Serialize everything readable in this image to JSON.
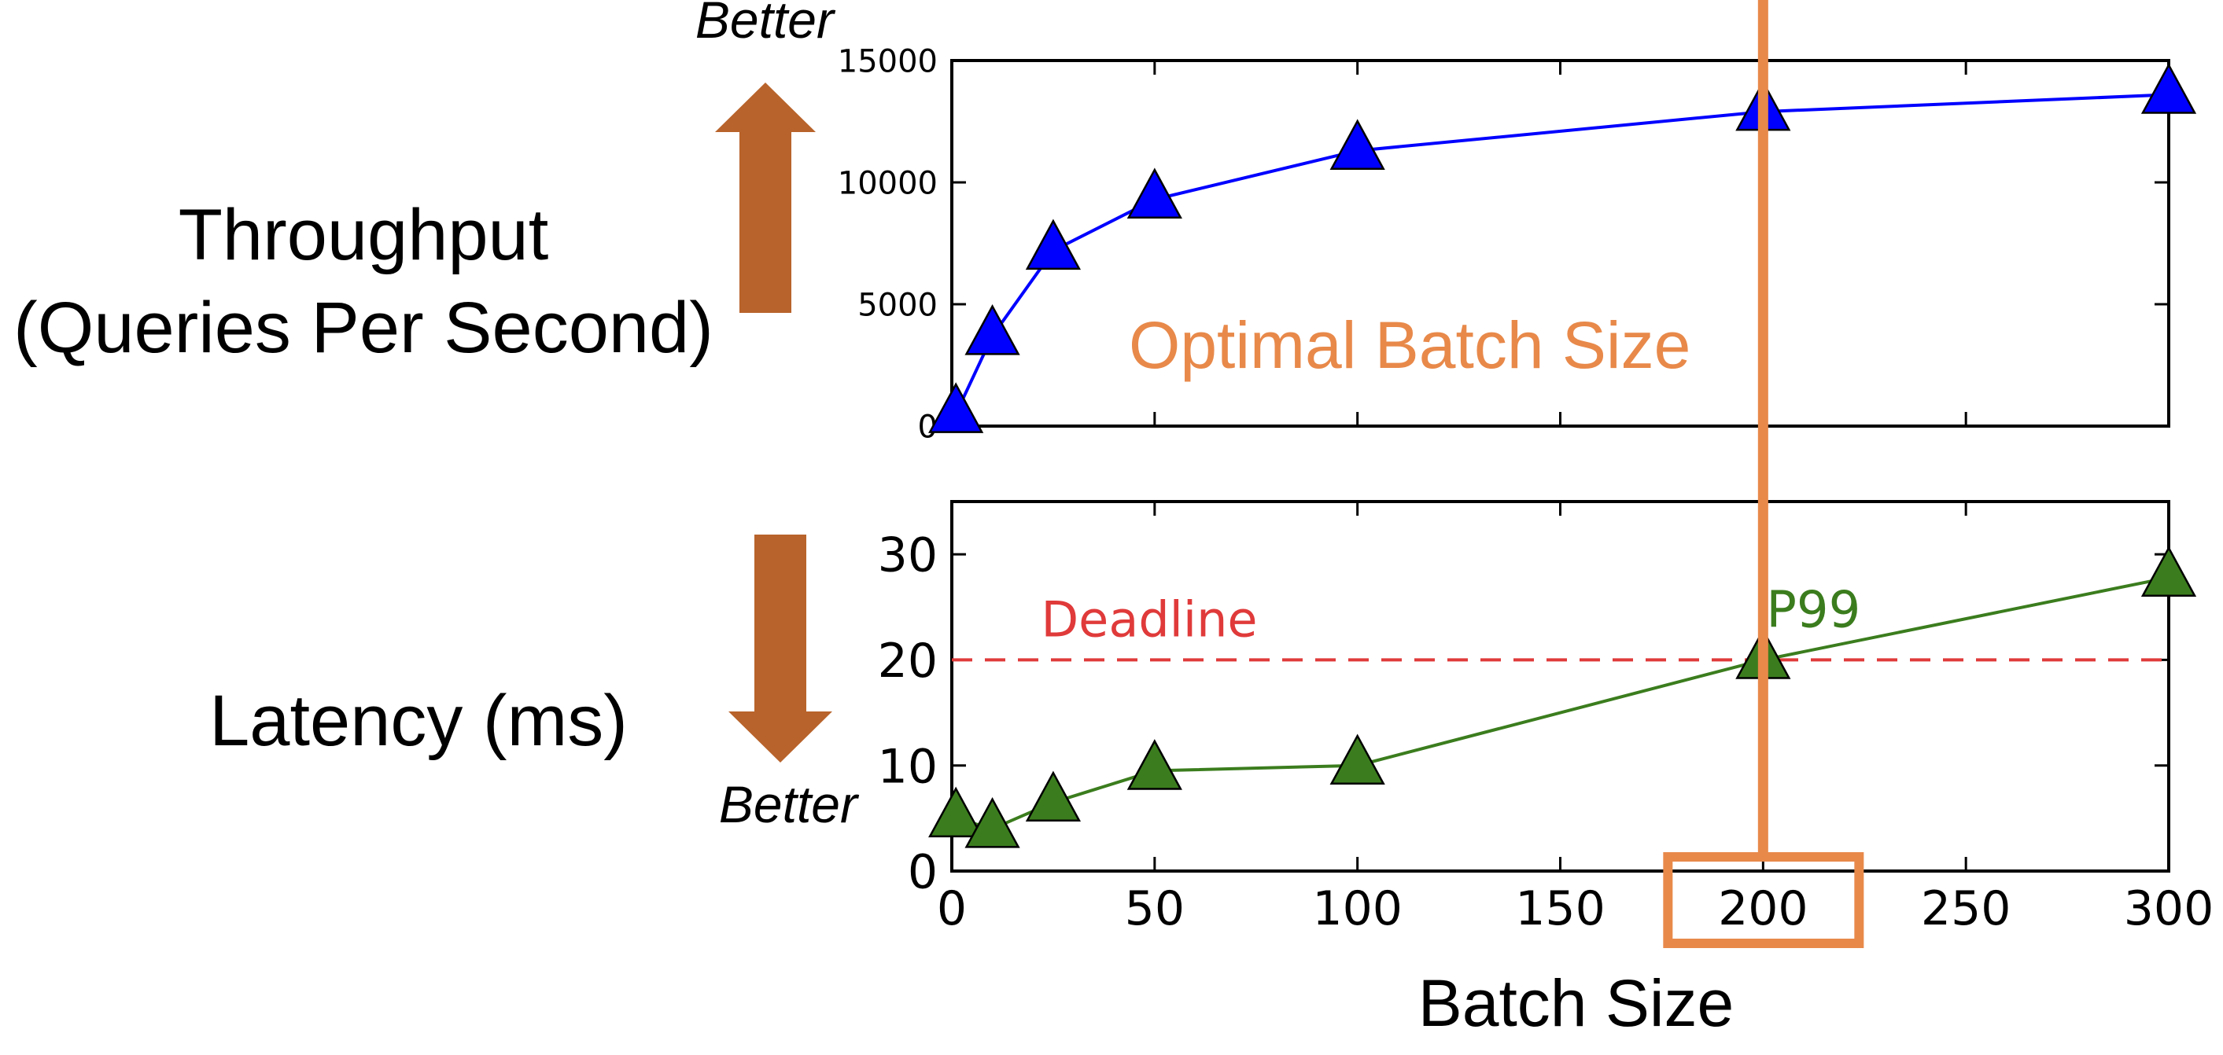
{
  "chart_data": [
    {
      "type": "line",
      "marker": "triangle",
      "ylabel": "Throughput\n(Queries Per Second)",
      "ylabel_lines": [
        "Throughput",
        "(Queries Per Second)"
      ],
      "better_label": "Better",
      "better_direction": "up",
      "xlim": [
        0,
        300
      ],
      "ylim": [
        0,
        15000
      ],
      "x_ticks": [
        0,
        50,
        100,
        150,
        200,
        250,
        300
      ],
      "y_ticks": [
        0,
        5000,
        10000,
        15000
      ],
      "x_tick_labels_shown": false,
      "series": [
        {
          "color": "#0000ff",
          "x": [
            1,
            10,
            25,
            50,
            100,
            200,
            300
          ],
          "y": [
            500,
            3700,
            7200,
            9300,
            11300,
            12900,
            13600
          ]
        }
      ],
      "annotations": [
        {
          "text": "Optimal Batch Size",
          "color": "#e8894a"
        }
      ]
    },
    {
      "type": "line",
      "marker": "triangle",
      "ylabel": "Latency (ms)",
      "better_label": "Better",
      "better_direction": "down",
      "xlabel": "Batch Size",
      "xlim": [
        0,
        300
      ],
      "ylim": [
        0,
        35
      ],
      "x_ticks": [
        0,
        50,
        100,
        150,
        200,
        250,
        300
      ],
      "y_ticks": [
        0,
        10,
        20,
        30
      ],
      "series": [
        {
          "name": "P99",
          "color": "#3b7d1e",
          "x": [
            1,
            10,
            25,
            50,
            100,
            200,
            300
          ],
          "y": [
            5,
            4,
            6.5,
            9.5,
            10,
            20,
            27.8
          ]
        }
      ],
      "reference_lines": [
        {
          "label": "Deadline",
          "y": 20,
          "color": "#e03a3a",
          "style": "dashed"
        }
      ]
    }
  ],
  "optimal": {
    "x": 200,
    "color": "#e8894a",
    "label": "Optimal Batch Size"
  },
  "arrow_color": "#b8632b"
}
